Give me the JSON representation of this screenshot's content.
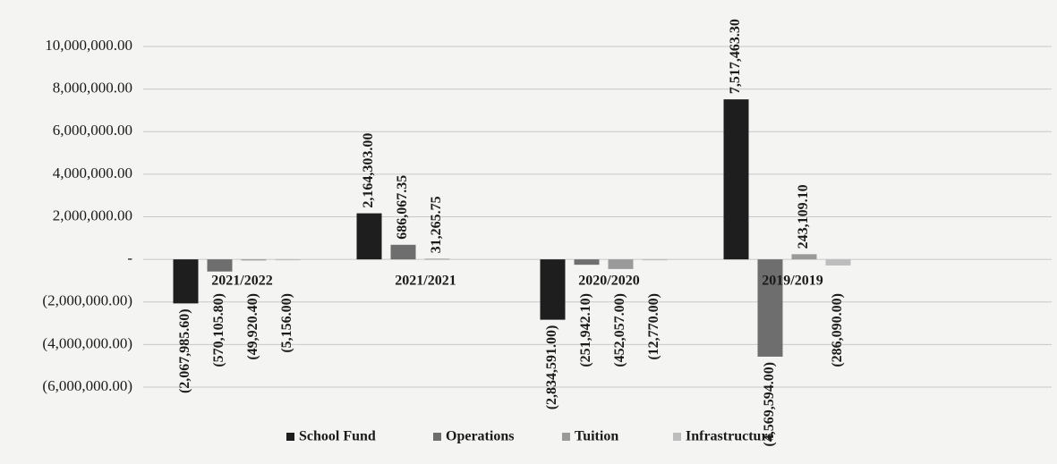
{
  "chart_data": {
    "type": "bar",
    "categories": [
      "2021/2022",
      "2021/2021",
      "2020/2020",
      "2019/2019"
    ],
    "series": [
      {
        "name": "School Fund",
        "color": "#1e1e1e",
        "values": [
          -2067985.6,
          2164303,
          -2834591,
          7517463.3
        ],
        "value_labels": [
          "(2,067,985.60)",
          "2,164,303.00",
          "(2,834,591.00)",
          "7,517,463.30"
        ]
      },
      {
        "name": "Operations",
        "color": "#6e6e6e",
        "values": [
          -570105.8,
          686067.35,
          -251942.1,
          -4569594
        ],
        "value_labels": [
          "(570,105.80)",
          "686,067.35",
          "(251,942.10)",
          "(4,569,594.00)"
        ]
      },
      {
        "name": "Tuition",
        "color": "#9a9a9a",
        "values": [
          -49920.4,
          31265.75,
          -452057,
          243109.1
        ],
        "value_labels": [
          "(49,920.40)",
          "31,265.75",
          "(452,057.00)",
          "243,109.10"
        ]
      },
      {
        "name": "Infrastructure",
        "color": "#bdbdbd",
        "values": [
          -5156,
          null,
          -12770,
          -286090
        ],
        "value_labels": [
          "(5,156.00)",
          null,
          "(12,770.00)",
          "(286,090.00)"
        ]
      }
    ],
    "ylim": [
      -6000000,
      12000000
    ],
    "yticks": [
      {
        "value": -6000000,
        "label": "(6,000,000.00)"
      },
      {
        "value": -4000000,
        "label": "(4,000,000.00)"
      },
      {
        "value": -2000000,
        "label": "(2,000,000.00)"
      },
      {
        "value": 0,
        "label": "-"
      },
      {
        "value": 2000000,
        "label": "2,000,000.00"
      },
      {
        "value": 4000000,
        "label": "4,000,000.00"
      },
      {
        "value": 6000000,
        "label": "6,000,000.00"
      },
      {
        "value": 8000000,
        "label": "8,000,000.00"
      },
      {
        "value": 10000000,
        "label": "10,000,000.00"
      }
    ],
    "grid": true,
    "legend": "bottom"
  }
}
